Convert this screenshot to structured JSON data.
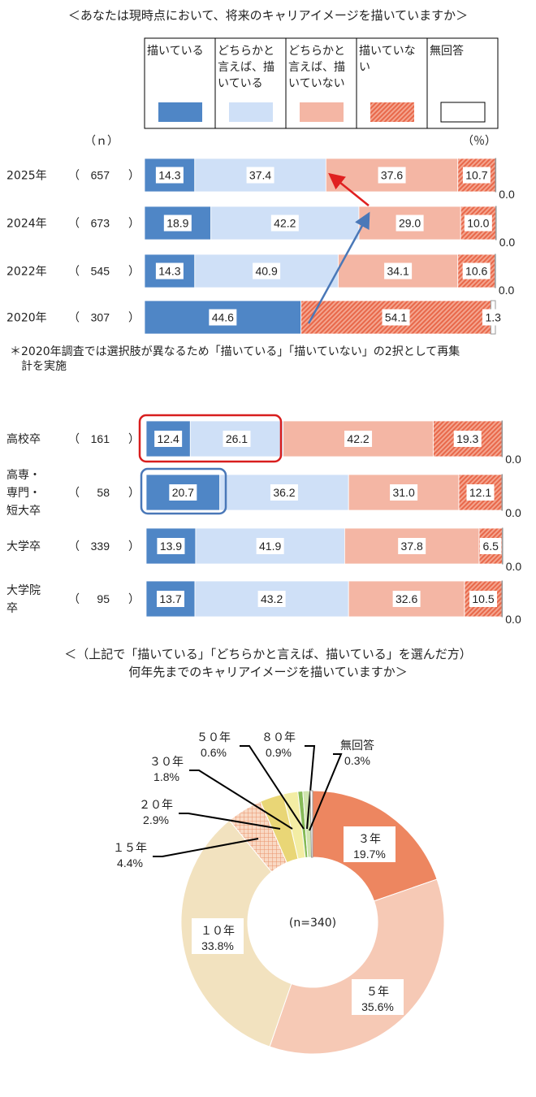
{
  "chart_data": [
    {
      "type": "bar",
      "orientation": "horizontal",
      "stacked": true,
      "title": "＜あなたは現時点において、将来のキャリアイメージを描いていますか＞",
      "n_header": "（ｎ）",
      "unit_label": "（％）",
      "legend": [
        "描いている",
        "どちらかと言えば、描いている",
        "どちらかと言えば、描いていない",
        "描いていない",
        "無回答"
      ],
      "legend_lines": [
        [
          "描いている"
        ],
        [
          "どちらかと",
          "言えば、描",
          "いている"
        ],
        [
          "どちらかと",
          "言えば、描",
          "いていない"
        ],
        [
          "描いていな",
          "い"
        ],
        [
          "無回答"
        ]
      ],
      "colors": [
        "#4f86c6",
        "#cfe0f7",
        "#f4b6a4",
        "#ee7d62",
        "#ffffff"
      ],
      "rows": [
        {
          "label": "2025年",
          "n": "657",
          "values": [
            14.3,
            37.4,
            37.6,
            10.7,
            0.0
          ]
        },
        {
          "label": "2024年",
          "n": "673",
          "values": [
            18.9,
            42.2,
            29.0,
            10.0,
            0.0
          ]
        },
        {
          "label": "2022年",
          "n": "545",
          "values": [
            14.3,
            40.9,
            34.1,
            10.6,
            0.0
          ]
        },
        {
          "label": "2020年",
          "n": "307",
          "values": [
            44.6,
            54.1,
            1.3
          ],
          "categories": [
            "描いている",
            "描いていない",
            "無回答"
          ]
        }
      ],
      "note": [
        "＊2020年調査では選択肢が異なるため「描いている」「描いていない」の2択として再集",
        "　計を実施"
      ]
    },
    {
      "type": "bar",
      "orientation": "horizontal",
      "stacked": true,
      "rows": [
        {
          "label": [
            "高校卒"
          ],
          "n": "161",
          "values": [
            12.4,
            26.1,
            42.2,
            19.3,
            0.0
          ]
        },
        {
          "label": [
            "高専・",
            "専門・",
            "短大卒"
          ],
          "n": "58",
          "values": [
            20.7,
            36.2,
            31.0,
            12.1,
            0.0
          ]
        },
        {
          "label": [
            "大学卒"
          ],
          "n": "339",
          "values": [
            13.9,
            41.9,
            37.8,
            6.5,
            0.0
          ]
        },
        {
          "label": [
            "大学院",
            "卒"
          ],
          "n": "95",
          "values": [
            13.7,
            43.2,
            32.6,
            10.5,
            0.0
          ]
        }
      ]
    },
    {
      "type": "pie",
      "donut": true,
      "title": [
        "＜（上記で「描いている」「どちらかと言えば、描いている」を選んだ方）",
        "何年先までのキャリアイメージを描いていますか＞"
      ],
      "center_label": "(n=340)",
      "slices": [
        {
          "label": "３年",
          "value": 19.7,
          "color": "#ed8660"
        },
        {
          "label": "５年",
          "value": 35.6,
          "color": "#f6c9b5"
        },
        {
          "label": "１０年",
          "value": 33.8,
          "color": "#f2e2bf"
        },
        {
          "label": "１５年",
          "value": 4.4,
          "color": "#f6c6a6"
        },
        {
          "label": "２０年",
          "value": 2.9,
          "color": "#e9d676"
        },
        {
          "label": "３０年",
          "value": 1.8,
          "color": "#f3eda4"
        },
        {
          "label": "５０年",
          "value": 0.6,
          "color": "#86bb58"
        },
        {
          "label": "８０年",
          "value": 0.9,
          "color": "#cfe4ae"
        },
        {
          "label": "無回答",
          "value": 0.3,
          "color": "#ffffff"
        }
      ]
    }
  ]
}
